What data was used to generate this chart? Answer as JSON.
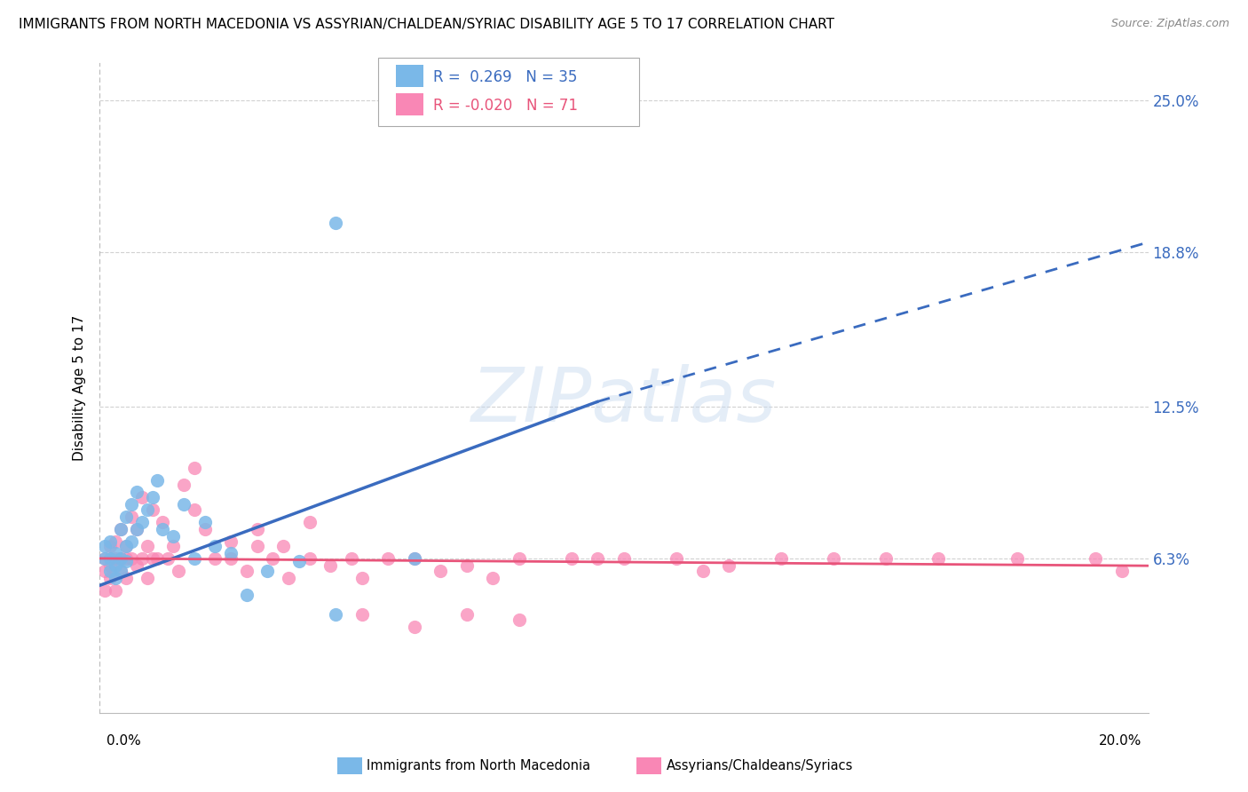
{
  "title": "IMMIGRANTS FROM NORTH MACEDONIA VS ASSYRIAN/CHALDEAN/SYRIAC DISABILITY AGE 5 TO 17 CORRELATION CHART",
  "source": "Source: ZipAtlas.com",
  "ylabel": "Disability Age 5 to 17",
  "y_tick_labels": [
    "6.3%",
    "12.5%",
    "18.8%",
    "25.0%"
  ],
  "y_tick_values": [
    0.063,
    0.125,
    0.188,
    0.25
  ],
  "xlim": [
    0.0,
    0.2
  ],
  "ylim": [
    0.0,
    0.265
  ],
  "color_blue": "#7ab8e8",
  "color_pink": "#f987b5",
  "trendline_blue_color": "#3a6bbf",
  "trendline_pink_color": "#e8547a",
  "legend_label_blue": "Immigrants from North Macedonia",
  "legend_label_pink": "Assyrians/Chaldeans/Syriacs",
  "blue_trend_x0": 0.0,
  "blue_trend_y0": 0.052,
  "blue_trend_x1": 0.095,
  "blue_trend_y1": 0.127,
  "blue_trend_dash_x1": 0.2,
  "blue_trend_dash_y1": 0.192,
  "pink_trend_x0": 0.0,
  "pink_trend_y0": 0.063,
  "pink_trend_x1": 0.2,
  "pink_trend_y1": 0.06,
  "blue_scatter_x": [
    0.001,
    0.001,
    0.002,
    0.002,
    0.002,
    0.003,
    0.003,
    0.003,
    0.004,
    0.004,
    0.004,
    0.005,
    0.005,
    0.005,
    0.006,
    0.006,
    0.007,
    0.007,
    0.008,
    0.009,
    0.01,
    0.011,
    0.012,
    0.014,
    0.016,
    0.018,
    0.02,
    0.022,
    0.025,
    0.028,
    0.032,
    0.038,
    0.045,
    0.06,
    0.045
  ],
  "blue_scatter_y": [
    0.063,
    0.068,
    0.058,
    0.063,
    0.07,
    0.06,
    0.065,
    0.055,
    0.063,
    0.075,
    0.058,
    0.068,
    0.08,
    0.062,
    0.07,
    0.085,
    0.075,
    0.09,
    0.078,
    0.083,
    0.088,
    0.095,
    0.075,
    0.072,
    0.085,
    0.063,
    0.078,
    0.068,
    0.065,
    0.048,
    0.058,
    0.062,
    0.04,
    0.063,
    0.2
  ],
  "pink_scatter_x": [
    0.001,
    0.001,
    0.001,
    0.002,
    0.002,
    0.002,
    0.003,
    0.003,
    0.003,
    0.004,
    0.004,
    0.004,
    0.005,
    0.005,
    0.005,
    0.006,
    0.006,
    0.007,
    0.007,
    0.008,
    0.008,
    0.009,
    0.009,
    0.01,
    0.01,
    0.011,
    0.012,
    0.013,
    0.014,
    0.015,
    0.016,
    0.018,
    0.02,
    0.022,
    0.025,
    0.028,
    0.03,
    0.033,
    0.036,
    0.04,
    0.044,
    0.048,
    0.05,
    0.055,
    0.06,
    0.065,
    0.07,
    0.075,
    0.08,
    0.09,
    0.095,
    0.1,
    0.11,
    0.115,
    0.12,
    0.13,
    0.14,
    0.15,
    0.16,
    0.175,
    0.018,
    0.025,
    0.03,
    0.035,
    0.04,
    0.05,
    0.06,
    0.07,
    0.08,
    0.195,
    0.19
  ],
  "pink_scatter_y": [
    0.058,
    0.063,
    0.05,
    0.068,
    0.06,
    0.055,
    0.063,
    0.07,
    0.05,
    0.063,
    0.075,
    0.058,
    0.063,
    0.068,
    0.055,
    0.063,
    0.08,
    0.06,
    0.075,
    0.063,
    0.088,
    0.068,
    0.055,
    0.063,
    0.083,
    0.063,
    0.078,
    0.063,
    0.068,
    0.058,
    0.093,
    0.083,
    0.075,
    0.063,
    0.063,
    0.058,
    0.068,
    0.063,
    0.055,
    0.063,
    0.06,
    0.063,
    0.055,
    0.063,
    0.063,
    0.058,
    0.06,
    0.055,
    0.063,
    0.063,
    0.063,
    0.063,
    0.063,
    0.058,
    0.06,
    0.063,
    0.063,
    0.063,
    0.063,
    0.063,
    0.1,
    0.07,
    0.075,
    0.068,
    0.078,
    0.04,
    0.035,
    0.04,
    0.038,
    0.058,
    0.063
  ]
}
